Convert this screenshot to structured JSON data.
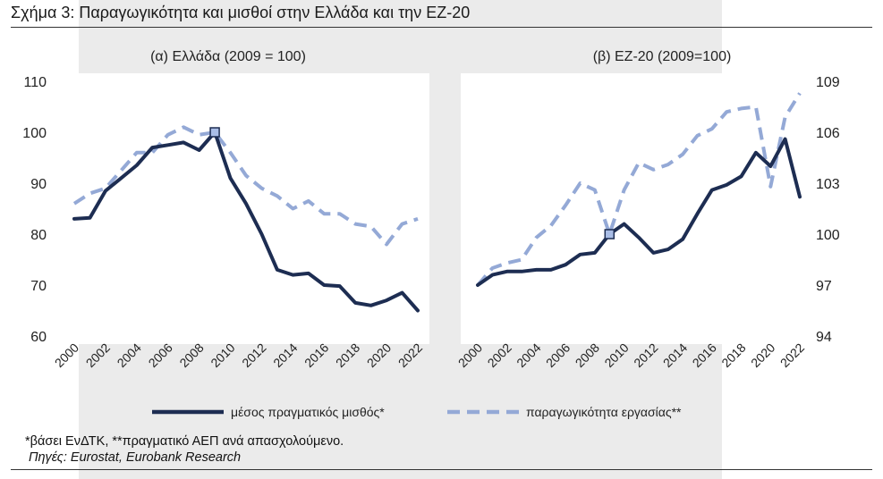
{
  "figure": {
    "title": "Σχήμα 3: Παραγωγικότητα και μισθοί στην Ελλάδα και την ΕΖ-20",
    "footnote": "*βάσει ΕνΔΤΚ,  **πραγματικό ΑΕΠ ανά απασχολούμενο.",
    "source": "Πηγές: Eurostat, Eurobank Research",
    "colors": {
      "wage": "#1d2d52",
      "productivity": "#94a9d6",
      "marker_fill": "#a9bde6",
      "panel_bg": "#ffffff",
      "band_bg": "#ebebeb"
    }
  },
  "chart_data": [
    {
      "type": "line",
      "title": "(α) Ελλάδα (2009 = 100)",
      "x": [
        2000,
        2001,
        2002,
        2003,
        2004,
        2005,
        2006,
        2007,
        2008,
        2009,
        2010,
        2011,
        2012,
        2013,
        2014,
        2015,
        2016,
        2017,
        2018,
        2019,
        2020,
        2021,
        2022
      ],
      "xticks": [
        "2000",
        "2002",
        "2004",
        "2006",
        "2008",
        "2010",
        "2012",
        "2014",
        "2016",
        "2018",
        "2020",
        "2022"
      ],
      "ylim": [
        60,
        110
      ],
      "yticks": [
        60,
        70,
        80,
        90,
        100,
        110
      ],
      "grid": false,
      "series": [
        {
          "name": "μέσος πραγματικός μισθός*",
          "style": "solid",
          "values": [
            83,
            83.2,
            88.5,
            91,
            93.5,
            97,
            97.5,
            98,
            96.5,
            100,
            91,
            86,
            80,
            73,
            72,
            72.3,
            70,
            69.8,
            66.5,
            66,
            67,
            68.5,
            65
          ]
        },
        {
          "name": "παραγωγικότητα εργασίας**",
          "style": "dashed",
          "values": [
            86,
            88,
            89,
            92.5,
            96,
            96,
            99.5,
            101,
            99.5,
            100,
            96,
            91.5,
            89,
            87.5,
            85,
            86.5,
            84,
            84,
            82,
            81.5,
            78,
            82,
            83
          ]
        }
      ],
      "markers": [
        {
          "x": 2009,
          "y": 100
        }
      ]
    },
    {
      "type": "line",
      "title": "(β) ΕΖ-20 (2009=100)",
      "x": [
        2000,
        2001,
        2002,
        2003,
        2004,
        2005,
        2006,
        2007,
        2008,
        2009,
        2010,
        2011,
        2012,
        2013,
        2014,
        2015,
        2016,
        2017,
        2018,
        2019,
        2020,
        2021,
        2022
      ],
      "xticks": [
        "2000",
        "2002",
        "2004",
        "2006",
        "2008",
        "2010",
        "2012",
        "2014",
        "2016",
        "2018",
        "2020",
        "2022"
      ],
      "ylim": [
        94,
        109
      ],
      "yticks": [
        94,
        97,
        100,
        103,
        106,
        109
      ],
      "yaxis_side": "right",
      "grid": false,
      "series": [
        {
          "name": "μέσος πραγματικός μισθός*",
          "style": "solid",
          "values": [
            97,
            97.6,
            97.8,
            97.8,
            97.9,
            97.9,
            98.2,
            98.8,
            98.9,
            100,
            100.6,
            99.8,
            98.9,
            99.1,
            99.7,
            101.2,
            102.6,
            102.9,
            103.4,
            104.8,
            104,
            105.6,
            102.2
          ]
        },
        {
          "name": "παραγωγικότητα εργασίας**",
          "style": "dashed",
          "values": [
            97,
            98,
            98.3,
            98.5,
            99.8,
            100.5,
            101.7,
            103,
            102.6,
            100,
            102.6,
            104.2,
            103.8,
            104.1,
            104.7,
            105.8,
            106.2,
            107.2,
            107.4,
            107.5,
            102.8,
            106.9,
            108.3
          ]
        }
      ],
      "markers": [
        {
          "x": 2009,
          "y": 100
        }
      ]
    }
  ]
}
